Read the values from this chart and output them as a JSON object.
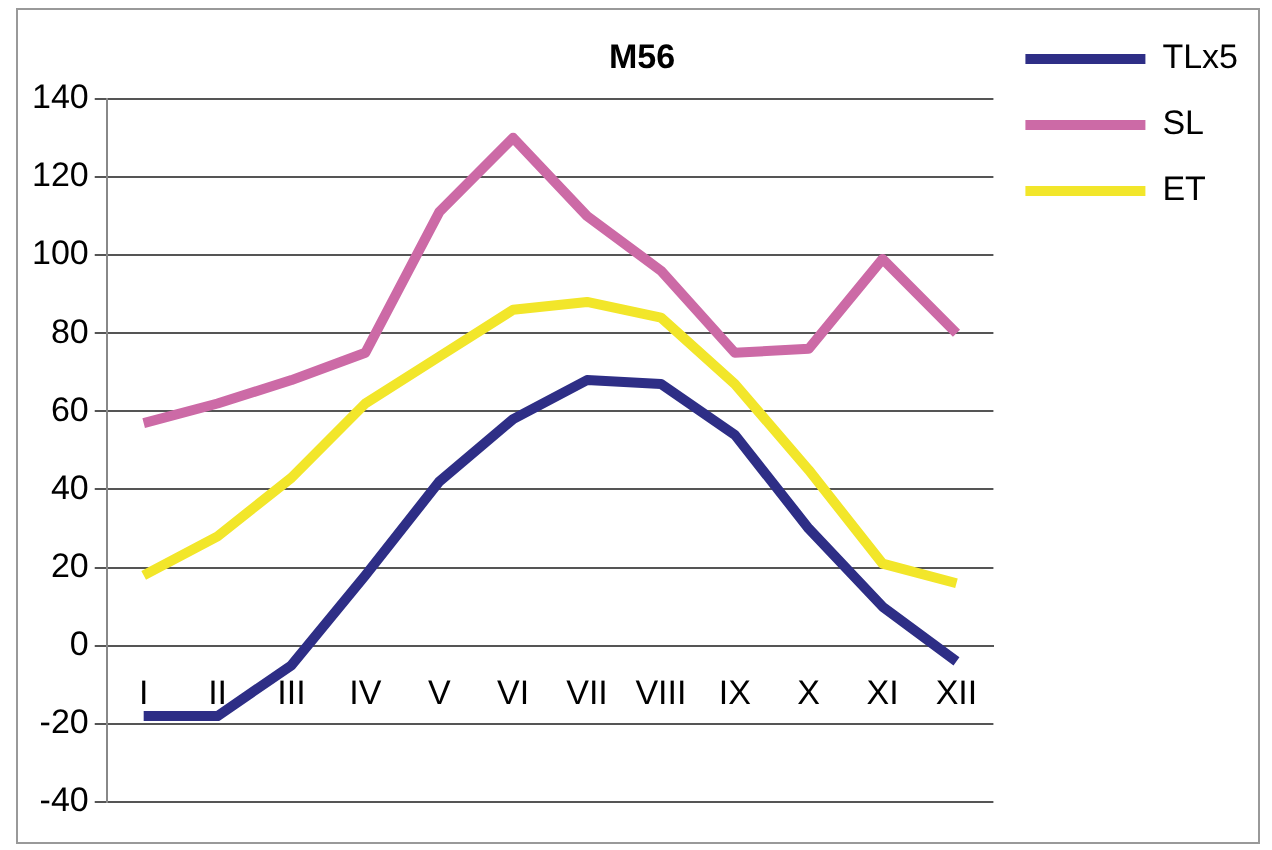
{
  "chart_data": {
    "type": "line",
    "title": "M56",
    "categories": [
      "I",
      "II",
      "III",
      "IV",
      "V",
      "VI",
      "VII",
      "VIII",
      "IX",
      "X",
      "XI",
      "XII"
    ],
    "series": [
      {
        "name": "TLx5",
        "color": "#2e2e86",
        "values": [
          -18,
          -18,
          -5,
          18,
          42,
          58,
          68,
          67,
          54,
          30,
          10,
          -4
        ]
      },
      {
        "name": "SL",
        "color": "#cc6aa6",
        "values": [
          57,
          62,
          68,
          75,
          111,
          130,
          110,
          96,
          75,
          76,
          99,
          80
        ]
      },
      {
        "name": "ET",
        "color": "#f2e62a",
        "values": [
          18,
          28,
          43,
          62,
          74,
          86,
          88,
          84,
          67,
          45,
          21,
          16
        ]
      }
    ],
    "ylim": [
      -40,
      140
    ],
    "yticks": [
      -40,
      -20,
      0,
      20,
      40,
      60,
      80,
      100,
      120,
      140
    ],
    "grid": "y",
    "legend": "top right",
    "marker": "none",
    "line_style": "solid"
  }
}
